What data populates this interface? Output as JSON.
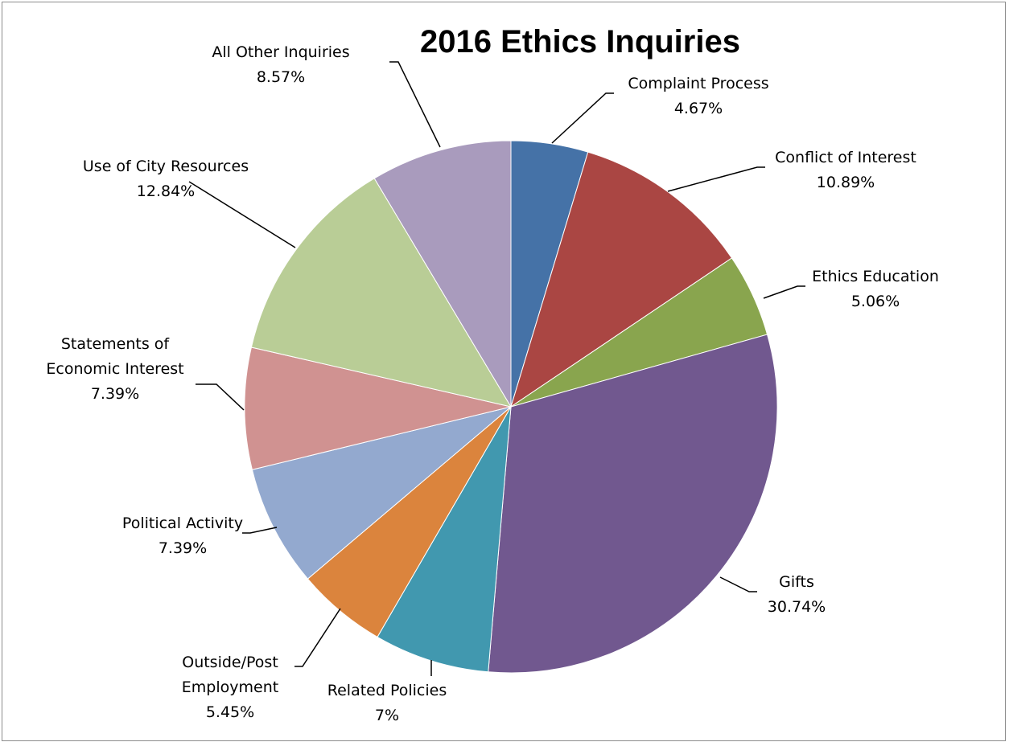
{
  "chart_data": {
    "type": "pie",
    "title": "2016 Ethics Inquiries",
    "slices": [
      {
        "label_lines": [
          "Complaint Process"
        ],
        "pct_text": "4.67%",
        "value": 4.67,
        "color": "#4572a7"
      },
      {
        "label_lines": [
          "Conflict of Interest"
        ],
        "pct_text": "10.89%",
        "value": 10.89,
        "color": "#aa4643"
      },
      {
        "label_lines": [
          "Ethics Education"
        ],
        "pct_text": "5.06%",
        "value": 5.06,
        "color": "#89a54e"
      },
      {
        "label_lines": [
          "Gifts"
        ],
        "pct_text": "30.74%",
        "value": 30.74,
        "color": "#71588f"
      },
      {
        "label_lines": [
          "Related Policies"
        ],
        "pct_text": "7%",
        "value": 7.0,
        "color": "#4198af"
      },
      {
        "label_lines": [
          "Outside/Post",
          "Employment"
        ],
        "pct_text": "5.45%",
        "value": 5.45,
        "color": "#db843d"
      },
      {
        "label_lines": [
          "Political Activity"
        ],
        "pct_text": "7.39%",
        "value": 7.39,
        "color": "#93a9cf"
      },
      {
        "label_lines": [
          "Statements of",
          "Economic Interest"
        ],
        "pct_text": "7.39%",
        "value": 7.39,
        "color": "#d09291"
      },
      {
        "label_lines": [
          "Use of City Resources"
        ],
        "pct_text": "12.84%",
        "value": 12.84,
        "color": "#b9cd96"
      },
      {
        "label_lines": [
          "All Other Inquiries"
        ],
        "pct_text": "8.57%",
        "value": 8.57,
        "color": "#a99bbd"
      }
    ]
  }
}
